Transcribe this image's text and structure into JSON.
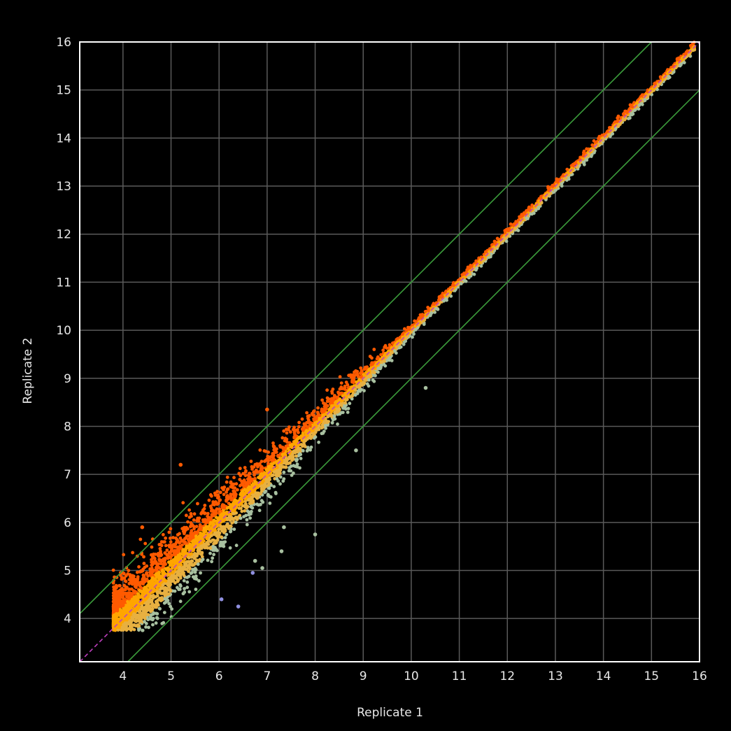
{
  "chart_data": {
    "type": "scatter",
    "title": "",
    "xlabel": "Replicate 1",
    "ylabel": "Replicate 2",
    "xlim": [
      3.1,
      16
    ],
    "ylim": [
      3.1,
      16
    ],
    "xticks": [
      "4",
      "5",
      "6",
      "7",
      "8",
      "9",
      "10",
      "11",
      "12",
      "13",
      "14",
      "15",
      "16"
    ],
    "yticks": [
      "4",
      "5",
      "6",
      "7",
      "8",
      "9",
      "10",
      "11",
      "12",
      "13",
      "14",
      "15",
      "16"
    ],
    "grid": true,
    "background": "#000000",
    "grid_color": "#5a5a5a",
    "diagonal_color": "#c040c0",
    "fold_line_color": "#3a9a3a",
    "fold_lines_offset": [
      1,
      -1
    ],
    "point_colors": [
      "#ff5a00",
      "#ffa500",
      "#e8b040",
      "#a8c0a0",
      "#9090e0"
    ],
    "points_x_range": [
      3.8,
      15.9
    ],
    "outliers": [
      {
        "x": 4.4,
        "y": 5.9
      },
      {
        "x": 5.2,
        "y": 7.2
      },
      {
        "x": 7.0,
        "y": 8.35
      },
      {
        "x": 10.3,
        "y": 8.8
      },
      {
        "x": 8.85,
        "y": 7.5
      },
      {
        "x": 8.0,
        "y": 5.75
      },
      {
        "x": 6.4,
        "y": 4.25
      },
      {
        "x": 6.05,
        "y": 4.4
      },
      {
        "x": 6.7,
        "y": 4.95
      },
      {
        "x": 7.3,
        "y": 5.4
      },
      {
        "x": 7.35,
        "y": 5.9
      },
      {
        "x": 6.75,
        "y": 5.2
      },
      {
        "x": 6.9,
        "y": 5.05
      }
    ]
  }
}
